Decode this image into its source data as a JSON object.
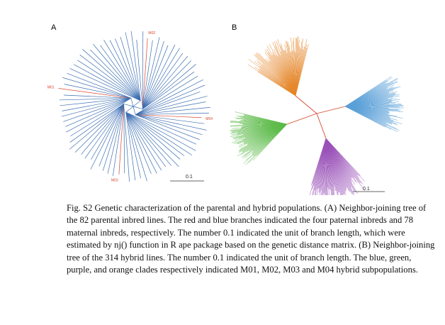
{
  "figure": {
    "panel_a_label": "A",
    "panel_b_label": "B",
    "scale_a": "0.1",
    "scale_b": "0.1",
    "caption": "Fig. S2 Genetic characterization of the parental and hybrid populations. (A) Neighbor-joining tree of the 82 parental inbred lines. The red and blue branches indicated the four paternal inbreds and 78 maternal inbreds, respectively. The number 0.1 indicated the unit of branch length, which were estimated by nj() function in R ape package based on the genetic distance matrix.  (B) Neighbor-joining tree of the 314 hybrid lines. The number 0.1 indicated the unit of branch length. The blue, green, purple, and orange clades respectively indicated M01, M02, M03 and M04 hybrid subpopulations."
  },
  "tree_a": {
    "n_lines": 82,
    "paternal_count": 4,
    "maternal_count": 78,
    "paternal_labels": [
      "M02",
      "M04",
      "M03",
      "M01"
    ],
    "colors": {
      "paternal": "#d9442b",
      "maternal": "#3d6fb3"
    }
  },
  "tree_b": {
    "n_lines": 314,
    "clades": [
      {
        "name": "M01",
        "color": "#5aa0d8"
      },
      {
        "name": "M02",
        "color": "#5dbb4a"
      },
      {
        "name": "M03",
        "color": "#9a52b8"
      },
      {
        "name": "M04",
        "color": "#e5862a"
      }
    ],
    "center_color": "#d9442b"
  }
}
